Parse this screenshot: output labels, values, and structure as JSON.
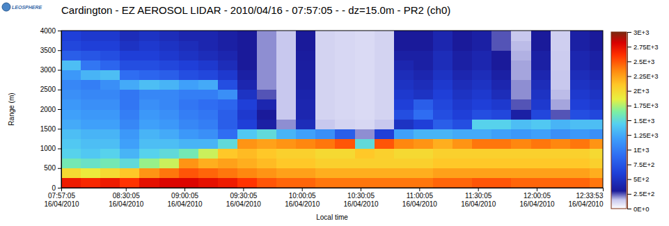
{
  "chart_data": {
    "type": "heatmap",
    "title": "Cardington - EZ AEROSOL LIDAR - 2010/04/16 - 07:57:05 - - dz=15.0m - PR2 (ch0)",
    "annotations": [
      "LEOSPHERE"
    ],
    "x_label": "Local time",
    "y_label": "Range (m)",
    "xlim": [
      "2010-04-16T07:57:05",
      "2010-04-16T12:33:53"
    ],
    "xticks": [
      {
        "value": "2010-04-16T07:57:05",
        "label": "07:57:05\n16/04/2010"
      },
      {
        "value": "2010-04-16T08:30:05",
        "label": "08:30:05\n16/04/2010"
      },
      {
        "value": "2010-04-16T09:00:05",
        "label": "09:00:05\n16/04/2010"
      },
      {
        "value": "2010-04-16T09:30:05",
        "label": "09:30:05\n16/04/2010"
      },
      {
        "value": "2010-04-16T10:00:05",
        "label": "10:00:05\n16/04/2010"
      },
      {
        "value": "2010-04-16T10:30:05",
        "label": "10:30:05\n16/04/2010"
      },
      {
        "value": "2010-04-16T11:00:05",
        "label": "11:00:05\n16/04/2010"
      },
      {
        "value": "2010-04-16T11:30:05",
        "label": "11:30:05\n16/04/2010"
      },
      {
        "value": "2010-04-16T12:00:05",
        "label": "12:00:05\n16/04/2010"
      },
      {
        "value": "2010-04-16T12:33:53",
        "label": "12:33:53\n16/04/2010"
      }
    ],
    "ylim": [
      0,
      4000
    ],
    "yticks": [
      0,
      500,
      1000,
      1500,
      2000,
      2500,
      3000,
      3500,
      4000
    ],
    "x": [
      "2010-04-16T07:57:05",
      "2010-04-16T08:07:05",
      "2010-04-16T08:17:05",
      "2010-04-16T08:27:05",
      "2010-04-16T08:37:05",
      "2010-04-16T08:47:05",
      "2010-04-16T08:57:05",
      "2010-04-16T09:07:05",
      "2010-04-16T09:17:05",
      "2010-04-16T09:27:05",
      "2010-04-16T09:37:05",
      "2010-04-16T09:47:05",
      "2010-04-16T09:57:05",
      "2010-04-16T10:07:05",
      "2010-04-16T10:17:05",
      "2010-04-16T10:27:05",
      "2010-04-16T10:37:05",
      "2010-04-16T10:47:05",
      "2010-04-16T10:57:05",
      "2010-04-16T11:07:05",
      "2010-04-16T11:17:05",
      "2010-04-16T11:27:05",
      "2010-04-16T11:37:05",
      "2010-04-16T11:47:05",
      "2010-04-16T11:57:05",
      "2010-04-16T12:07:05",
      "2010-04-16T12:17:05",
      "2010-04-16T12:27:05"
    ],
    "y": [
      0,
      250,
      500,
      750,
      1000,
      1250,
      1500,
      1750,
      2000,
      2250,
      2500,
      2750,
      3000,
      3250,
      3500,
      3750
    ],
    "cells": [
      [
        2700,
        2000,
        1600,
        1450,
        1400,
        1350,
        1250,
        1200,
        1150,
        1100,
        1050,
        1150,
        1350,
        800,
        650,
        600
      ],
      [
        2650,
        1900,
        1550,
        1400,
        1350,
        1300,
        1200,
        1150,
        1100,
        1050,
        1000,
        1300,
        950,
        750,
        600,
        550
      ],
      [
        2700,
        2000,
        1600,
        1450,
        1350,
        1300,
        1200,
        1150,
        1100,
        1050,
        1100,
        1350,
        850,
        700,
        600,
        550
      ],
      [
        2600,
        2100,
        1500,
        1300,
        1200,
        1150,
        1050,
        1000,
        950,
        950,
        1250,
        900,
        700,
        600,
        500,
        450
      ],
      [
        2750,
        2300,
        1700,
        1450,
        1350,
        1300,
        1200,
        1150,
        1100,
        1050,
        1350,
        850,
        700,
        600,
        550,
        500
      ],
      [
        2800,
        2400,
        1800,
        1500,
        1350,
        1250,
        1150,
        1100,
        1050,
        1050,
        1300,
        800,
        650,
        550,
        500,
        450
      ],
      [
        2800,
        2500,
        2300,
        1600,
        1300,
        1150,
        1050,
        1000,
        950,
        1000,
        1200,
        700,
        600,
        500,
        450,
        400
      ],
      [
        2750,
        2450,
        2200,
        1800,
        1300,
        1100,
        1000,
        950,
        900,
        1000,
        1250,
        650,
        550,
        450,
        400,
        400
      ],
      [
        2700,
        2400,
        2250,
        2100,
        1500,
        900,
        800,
        800,
        850,
        1100,
        700,
        550,
        450,
        400,
        350,
        350
      ],
      [
        2600,
        2350,
        2200,
        2150,
        2300,
        1400,
        600,
        550,
        600,
        500,
        400,
        350,
        300,
        300,
        300,
        300
      ],
      [
        2500,
        2300,
        2150,
        2100,
        2250,
        1500,
        350,
        300,
        400,
        250,
        200,
        200,
        200,
        200,
        200,
        200
      ],
      [
        2450,
        2250,
        2100,
        2050,
        2300,
        1300,
        200,
        150,
        150,
        150,
        150,
        150,
        150,
        150,
        150,
        150
      ],
      [
        2450,
        2250,
        2100,
        2050,
        2350,
        1200,
        450,
        400,
        400,
        380,
        350,
        350,
        330,
        320,
        300,
        300
      ],
      [
        2400,
        2200,
        2050,
        2000,
        2400,
        1100,
        150,
        120,
        120,
        120,
        120,
        120,
        120,
        120,
        120,
        120
      ],
      [
        2400,
        2200,
        2050,
        2000,
        2500,
        800,
        120,
        110,
        110,
        110,
        110,
        110,
        110,
        110,
        110,
        110
      ],
      [
        2400,
        2200,
        2050,
        2100,
        1500,
        200,
        110,
        100,
        100,
        100,
        100,
        100,
        100,
        100,
        100,
        100
      ],
      [
        2400,
        2200,
        2050,
        2050,
        2500,
        600,
        150,
        120,
        120,
        120,
        120,
        120,
        120,
        120,
        120,
        120
      ],
      [
        2400,
        2200,
        2050,
        2000,
        2350,
        1200,
        500,
        700,
        600,
        550,
        500,
        450,
        400,
        350,
        300,
        300
      ],
      [
        2400,
        2200,
        2050,
        2000,
        2300,
        1300,
        600,
        900,
        800,
        500,
        450,
        400,
        350,
        350,
        300,
        300
      ],
      [
        2450,
        2250,
        2100,
        2050,
        2200,
        1300,
        800,
        700,
        650,
        600,
        550,
        500,
        450,
        450,
        400,
        400
      ],
      [
        2450,
        2250,
        2100,
        2050,
        2300,
        1250,
        700,
        600,
        550,
        500,
        450,
        400,
        350,
        350,
        300,
        300
      ],
      [
        2500,
        2250,
        2100,
        2050,
        2400,
        1250,
        1450,
        700,
        600,
        550,
        500,
        450,
        400,
        400,
        350,
        350
      ],
      [
        2500,
        2250,
        2100,
        2050,
        2400,
        1200,
        1450,
        650,
        550,
        450,
        400,
        350,
        300,
        300,
        250,
        250
      ],
      [
        2450,
        2250,
        2100,
        2050,
        2350,
        1150,
        1350,
        350,
        250,
        200,
        200,
        180,
        180,
        170,
        160,
        150
      ],
      [
        2450,
        2250,
        2100,
        2050,
        2400,
        1200,
        1400,
        650,
        550,
        500,
        450,
        400,
        350,
        350,
        300,
        300
      ],
      [
        2450,
        2250,
        2100,
        2050,
        2350,
        1100,
        1300,
        250,
        180,
        160,
        150,
        150,
        140,
        140,
        130,
        130
      ],
      [
        2450,
        2250,
        2100,
        2050,
        2400,
        1150,
        1350,
        700,
        600,
        550,
        500,
        450,
        400,
        400,
        350,
        350
      ],
      [
        2400,
        2200,
        2050,
        2000,
        2300,
        1100,
        1350,
        650,
        550,
        500,
        450,
        400,
        350,
        350,
        300,
        300
      ]
    ],
    "colorbar": {
      "range": [
        0,
        3000
      ],
      "ticks": [
        {
          "value": 3000,
          "label": "3E+3"
        },
        {
          "value": 2750,
          "label": "2.75E+3"
        },
        {
          "value": 2500,
          "label": "2.5E+3"
        },
        {
          "value": 2250,
          "label": "2.25E+3"
        },
        {
          "value": 2000,
          "label": "2E+3"
        },
        {
          "value": 1750,
          "label": "1.75E+3"
        },
        {
          "value": 1500,
          "label": "1.5E+3"
        },
        {
          "value": 1250,
          "label": "1.25E+3"
        },
        {
          "value": 1000,
          "label": "1E+3"
        },
        {
          "value": 750,
          "label": "7.5E+2"
        },
        {
          "value": 500,
          "label": "5E+2"
        },
        {
          "value": 250,
          "label": "2.5E+2"
        },
        {
          "value": 0,
          "label": "0E+0"
        }
      ]
    }
  }
}
